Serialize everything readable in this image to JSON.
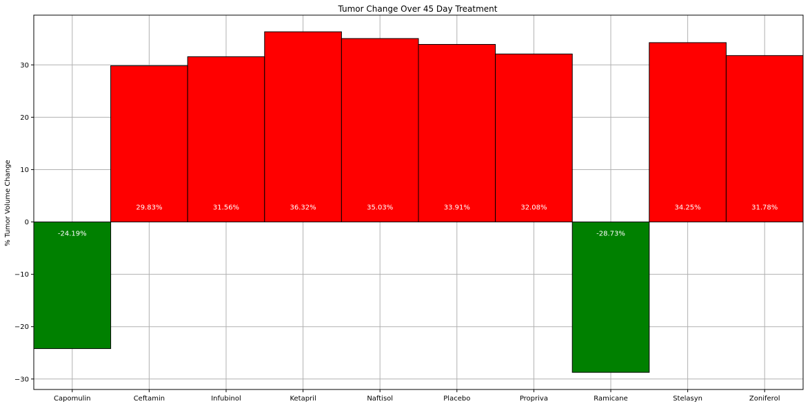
{
  "chart_data": {
    "type": "bar",
    "title": "Tumor Change Over 45 Day Treatment",
    "xlabel": "",
    "ylabel": "% Tumor Volume Change",
    "categories": [
      "Capomulin",
      "Ceftamin",
      "Infubinol",
      "Ketapril",
      "Naftisol",
      "Placebo",
      "Propriva",
      "Ramicane",
      "Stelasyn",
      "Zoniferol"
    ],
    "values": [
      -24.19,
      29.83,
      31.56,
      36.32,
      35.03,
      33.91,
      32.08,
      -28.73,
      34.25,
      31.78
    ],
    "data_labels": [
      "-24.19%",
      "29.83%",
      "31.56%",
      "36.32%",
      "35.03%",
      "33.91%",
      "32.08%",
      "-28.73%",
      "34.25%",
      "31.78%"
    ],
    "yticks": [
      -30,
      -20,
      -10,
      0,
      10,
      20,
      30
    ],
    "ytick_labels": [
      "−30",
      "−20",
      "−10",
      "0",
      "10",
      "20",
      "30"
    ],
    "ylim": [
      -32,
      39.5
    ],
    "grid": true,
    "colors": {
      "positive": "#ff0000",
      "negative": "#008000",
      "edge": "#000000",
      "grid": "#b0b0b0"
    }
  }
}
